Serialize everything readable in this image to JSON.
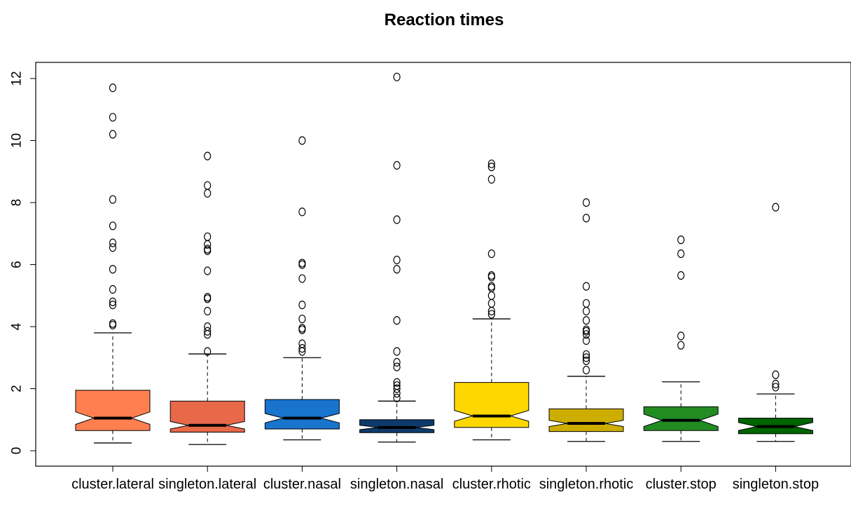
{
  "chart_data": {
    "type": "boxplot",
    "title": "Reaction times",
    "xlabel": "",
    "ylabel": "",
    "ylim": [
      -0.3,
      12.4
    ],
    "yticks": [
      0,
      2,
      4,
      6,
      8,
      10,
      12
    ],
    "notched": true,
    "categories": [
      "cluster.lateral",
      "singleton.lateral",
      "cluster.nasal",
      "singleton.nasal",
      "cluster.rhotic",
      "singleton.rhotic",
      "cluster.stop",
      "singleton.stop"
    ],
    "colors": [
      "#FF7F50",
      "#E8694A",
      "#1874CD",
      "#0E3A6B",
      "#FFD700",
      "#CDAD00",
      "#228B22",
      "#006400"
    ],
    "series": [
      {
        "category": "cluster.lateral",
        "whisker_low": 0.25,
        "q1": 0.65,
        "median": 1.05,
        "q3": 1.95,
        "whisker_high": 3.8,
        "notch": [
          0.85,
          1.25
        ],
        "outliers": [
          4.05,
          4.1,
          4.7,
          4.8,
          5.2,
          5.85,
          6.55,
          6.7,
          7.25,
          8.1,
          10.2,
          10.75,
          11.7
        ]
      },
      {
        "category": "singleton.lateral",
        "whisker_low": 0.2,
        "q1": 0.6,
        "median": 0.82,
        "q3": 1.6,
        "whisker_high": 3.12,
        "notch": [
          0.7,
          0.94
        ],
        "outliers": [
          3.2,
          3.75,
          3.85,
          4.0,
          4.5,
          4.9,
          4.95,
          5.8,
          6.45,
          6.5,
          6.65,
          6.9,
          8.3,
          8.55,
          9.5
        ]
      },
      {
        "category": "cluster.nasal",
        "whisker_low": 0.35,
        "q1": 0.7,
        "median": 1.05,
        "q3": 1.65,
        "whisker_high": 3.0,
        "notch": [
          0.9,
          1.2
        ],
        "outliers": [
          3.2,
          3.3,
          3.45,
          3.9,
          3.95,
          4.25,
          4.7,
          5.55,
          6.0,
          6.05,
          7.7,
          10.0
        ]
      },
      {
        "category": "singleton.nasal",
        "whisker_low": 0.28,
        "q1": 0.58,
        "median": 0.75,
        "q3": 1.0,
        "whisker_high": 1.6,
        "notch": [
          0.68,
          0.82
        ],
        "outliers": [
          1.7,
          1.85,
          2.0,
          2.1,
          2.2,
          2.7,
          2.85,
          3.2,
          4.2,
          5.85,
          6.15,
          7.45,
          9.2,
          12.05
        ]
      },
      {
        "category": "cluster.rhotic",
        "whisker_low": 0.35,
        "q1": 0.75,
        "median": 1.12,
        "q3": 2.2,
        "whisker_high": 4.25,
        "notch": [
          0.95,
          1.3
        ],
        "outliers": [
          4.4,
          4.5,
          4.75,
          5.0,
          5.25,
          5.3,
          5.6,
          5.65,
          6.35,
          8.75,
          9.15,
          9.25
        ]
      },
      {
        "category": "singleton.rhotic",
        "whisker_low": 0.3,
        "q1": 0.62,
        "median": 0.88,
        "q3": 1.35,
        "whisker_high": 2.4,
        "notch": [
          0.78,
          0.98
        ],
        "outliers": [
          2.6,
          2.9,
          3.0,
          3.1,
          3.55,
          3.75,
          3.85,
          3.9,
          4.2,
          4.5,
          4.75,
          5.3,
          7.5,
          8.0
        ]
      },
      {
        "category": "cluster.stop",
        "whisker_low": 0.3,
        "q1": 0.65,
        "median": 0.98,
        "q3": 1.42,
        "whisker_high": 2.22,
        "notch": [
          0.78,
          1.18
        ],
        "outliers": [
          3.4,
          3.7,
          5.65,
          6.35,
          6.8
        ]
      },
      {
        "category": "singleton.stop",
        "whisker_low": 0.3,
        "q1": 0.55,
        "median": 0.78,
        "q3": 1.05,
        "whisker_high": 1.83,
        "notch": [
          0.65,
          0.91
        ],
        "outliers": [
          2.05,
          2.15,
          2.45,
          7.85
        ]
      }
    ]
  }
}
